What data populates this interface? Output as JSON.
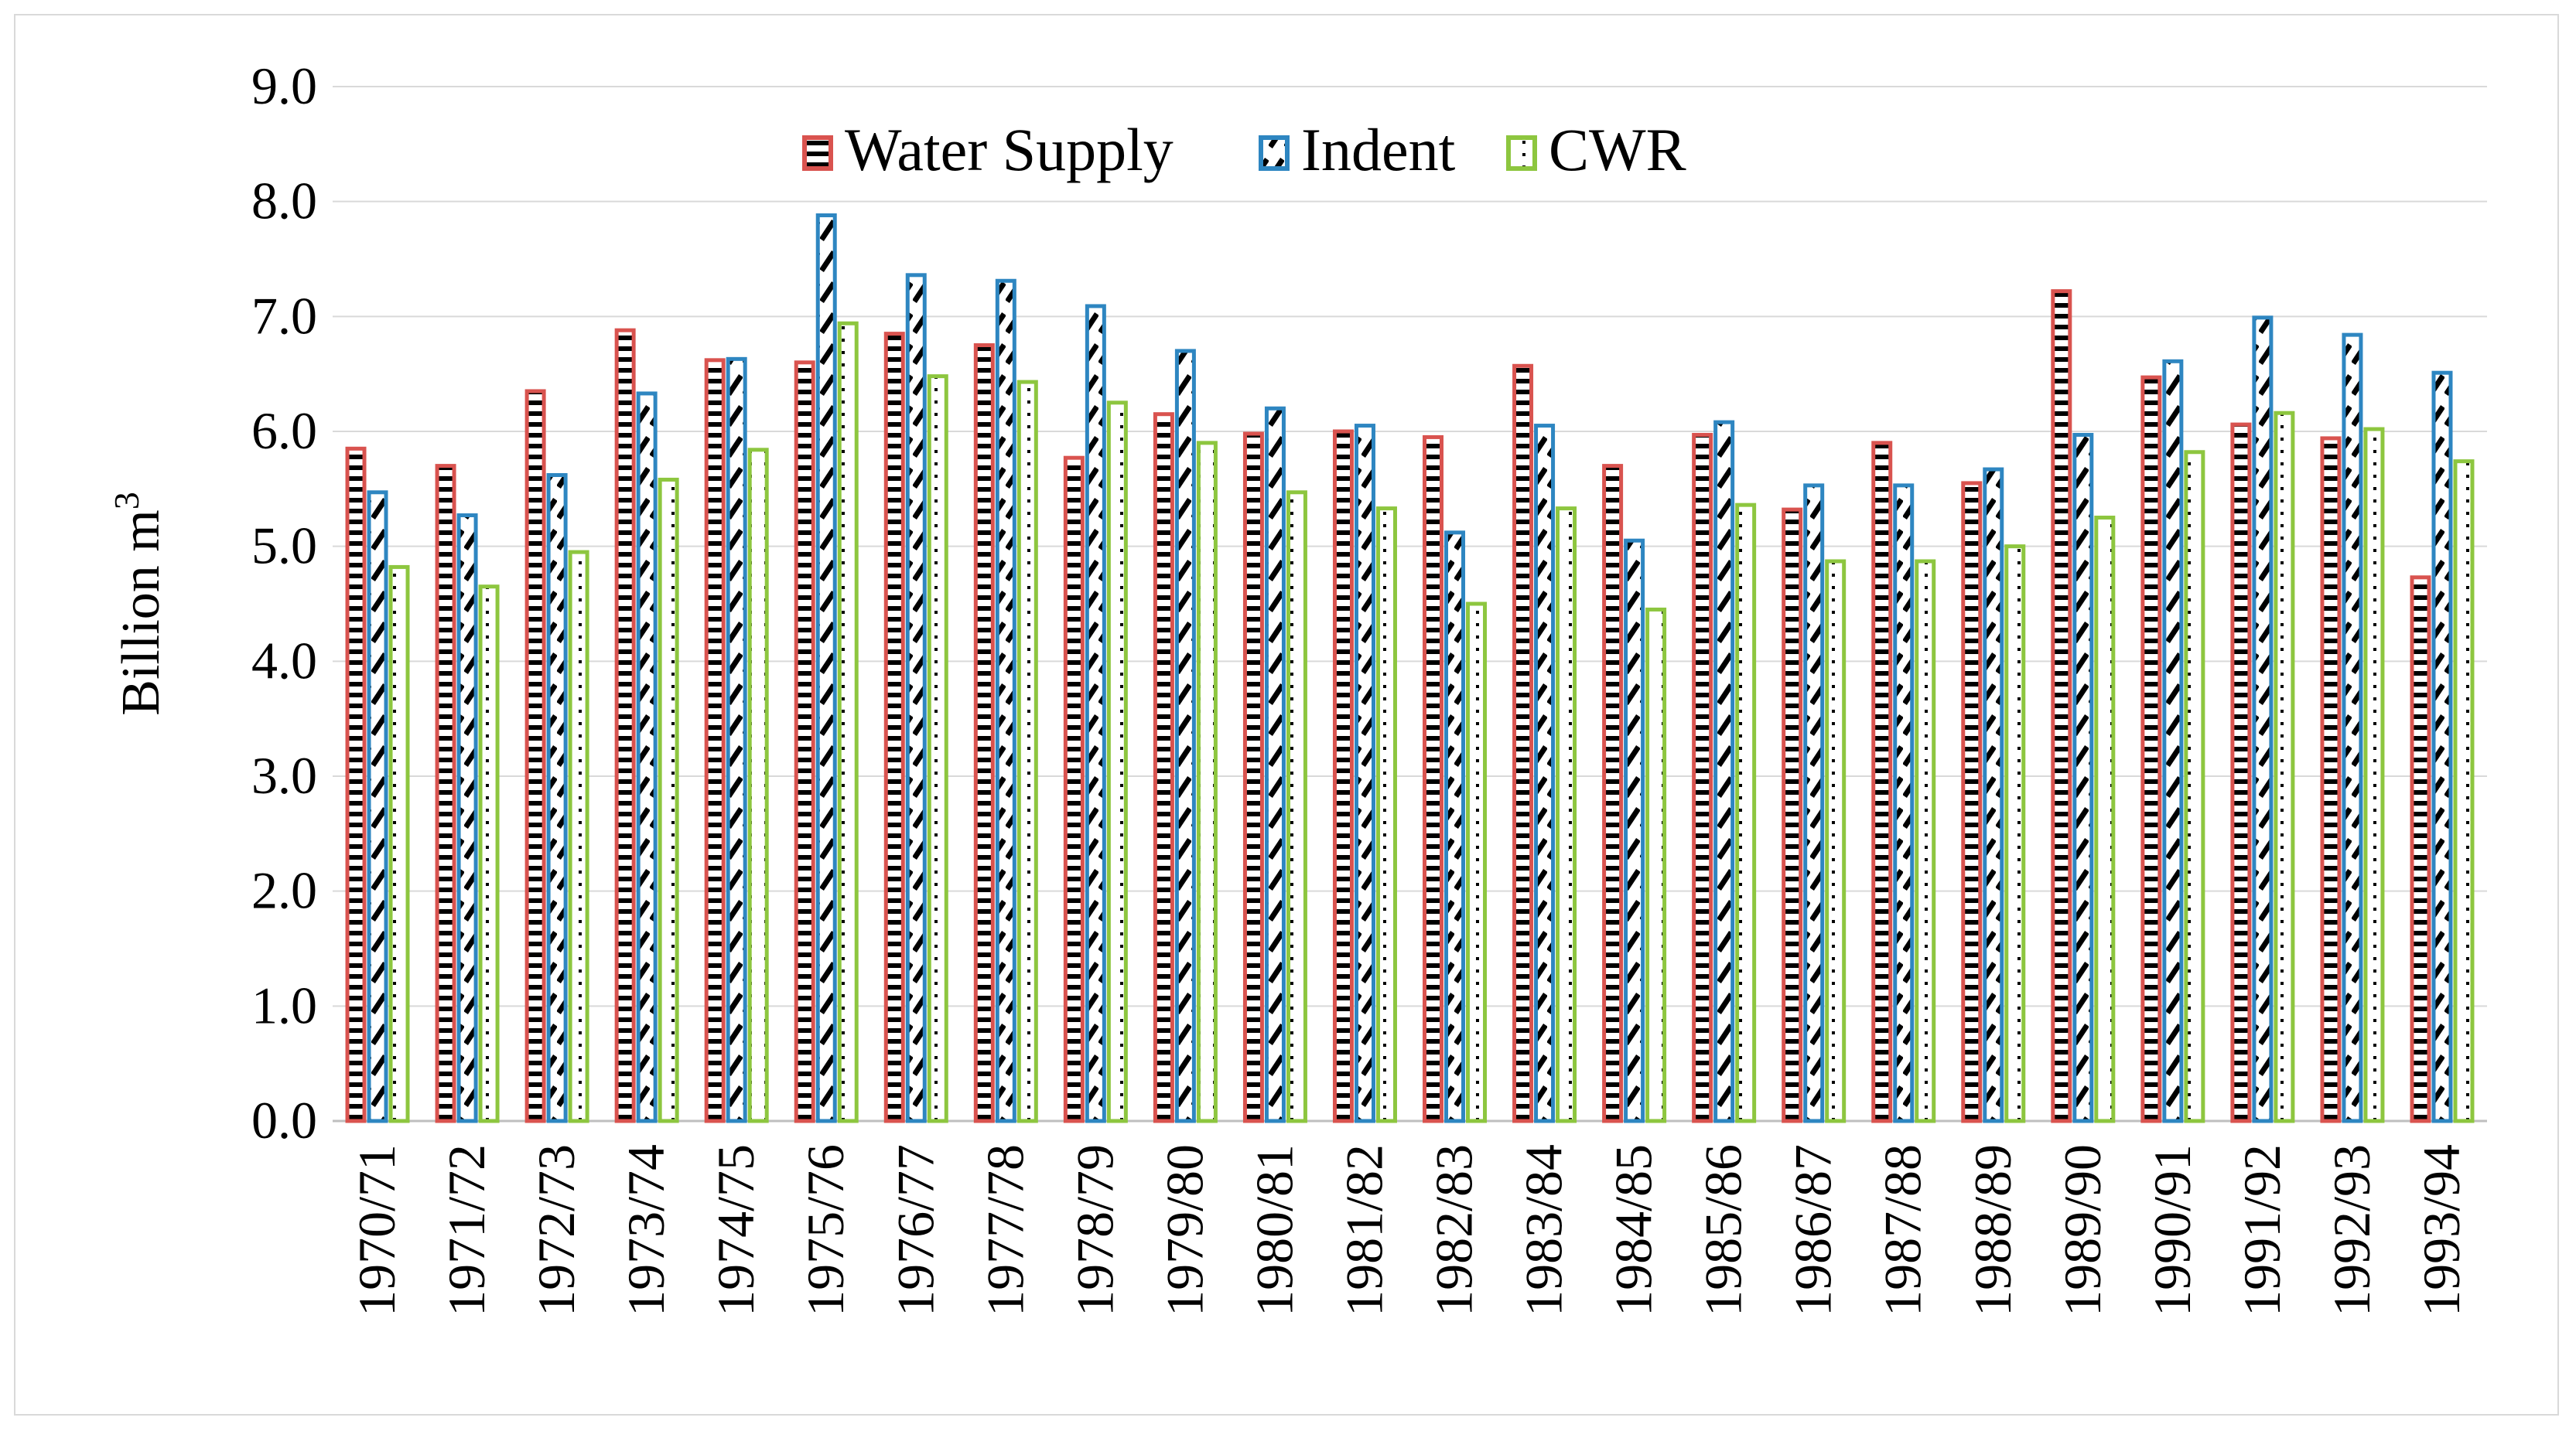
{
  "chart_data": {
    "type": "bar",
    "title": "",
    "xlabel": "",
    "ylabel": "Billion m",
    "ylabel_superscript": "3",
    "ylim": [
      0,
      9
    ],
    "yticks": [
      "0.0",
      "1.0",
      "2.0",
      "3.0",
      "4.0",
      "5.0",
      "6.0",
      "7.0",
      "8.0",
      "9.0"
    ],
    "ytick_values": [
      0,
      1,
      2,
      3,
      4,
      5,
      6,
      7,
      8,
      9
    ],
    "grid": true,
    "legend_position": "top-center",
    "categories": [
      "1970/71",
      "1971/72",
      "1972/73",
      "1973/74",
      "1974/75",
      "1975/76",
      "1976/77",
      "1977/78",
      "1978/79",
      "1979/80",
      "1980/81",
      "1981/82",
      "1982/83",
      "1983/84",
      "1984/85",
      "1985/86",
      "1986/87",
      "1987/88",
      "1988/89",
      "1989/90",
      "1990/91",
      "1991/92",
      "1992/93",
      "1993/94"
    ],
    "series": [
      {
        "name": "Water Supply",
        "color": "#d9534f",
        "pattern": "horizontal-stripes",
        "values": [
          5.85,
          5.7,
          6.35,
          6.88,
          6.62,
          6.6,
          6.85,
          6.75,
          5.77,
          6.15,
          5.98,
          6.0,
          5.95,
          6.57,
          5.7,
          5.97,
          5.32,
          5.9,
          5.55,
          7.22,
          6.47,
          6.06,
          5.94,
          4.73
        ]
      },
      {
        "name": "Indent",
        "color": "#2e86c1",
        "pattern": "diagonal-dashes",
        "values": [
          5.47,
          5.27,
          5.62,
          6.33,
          6.63,
          7.88,
          7.36,
          7.31,
          7.09,
          6.7,
          6.2,
          6.05,
          5.12,
          6.05,
          5.05,
          6.08,
          5.53,
          5.53,
          5.67,
          5.97,
          6.61,
          6.99,
          6.84,
          6.51
        ]
      },
      {
        "name": "CWR",
        "color": "#8dc63f",
        "pattern": "dots",
        "values": [
          4.82,
          4.65,
          4.95,
          5.58,
          5.84,
          6.94,
          6.48,
          6.43,
          6.25,
          5.9,
          5.47,
          5.33,
          4.5,
          5.33,
          4.45,
          5.36,
          4.87,
          4.87,
          5.0,
          5.25,
          5.82,
          6.16,
          6.02,
          5.74
        ]
      }
    ]
  }
}
